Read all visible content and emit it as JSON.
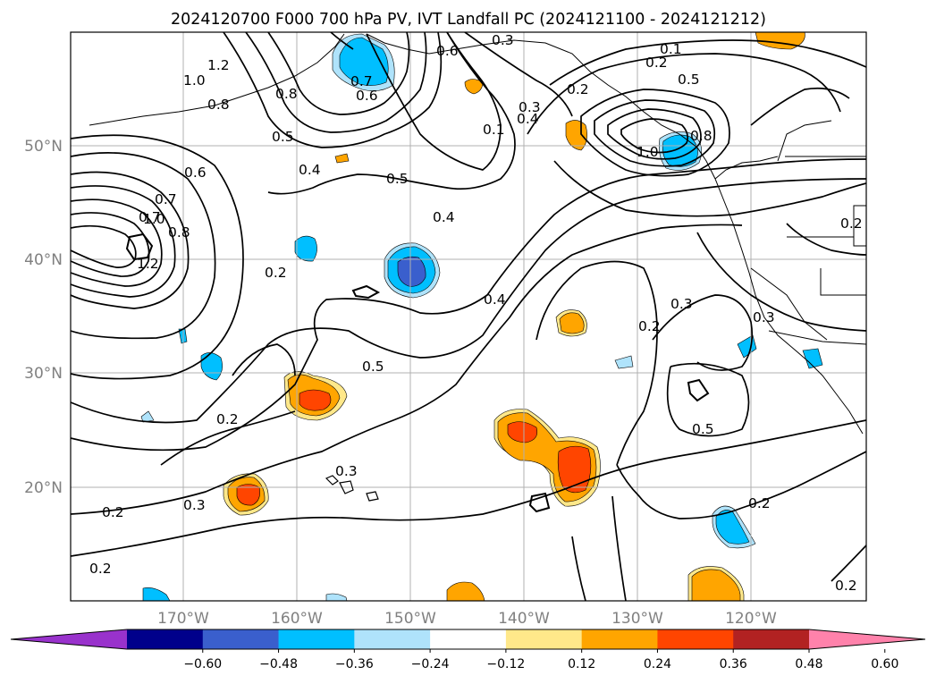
{
  "title": "2024120700 F000 700 hPa PV, IVT Landfall PC (2024121100 - 2024121212)",
  "lat_labels": [
    "50°N",
    "40°N",
    "30°N",
    "20°N"
  ],
  "lon_labels": [
    "170°W",
    "160°W",
    "150°W",
    "140°W",
    "130°W",
    "120°W"
  ],
  "contour_labels": [
    "1.2",
    "1.0",
    "0.8",
    "0.6",
    "0.5",
    "0.8",
    "0.7",
    "0.4",
    "0.2",
    "0.5",
    "0.4",
    "0.3",
    "0.2",
    "0.5",
    "0.4",
    "0.1",
    "0.3",
    "0.6",
    "0.7",
    "0.6",
    "0.2",
    "0.1",
    "0.7",
    "0.8",
    "1.0",
    "1.2",
    "0.2",
    "0.4",
    "0.5",
    "0.3",
    "0.2",
    "0.3",
    "0.2",
    "0.3",
    "0.2",
    "0.5",
    "0.2",
    "0.2",
    "0.3",
    "0.2",
    "1.0",
    "0.8"
  ],
  "colorbar": {
    "ticks": [
      "−0.60",
      "−0.48",
      "−0.36",
      "−0.24",
      "−0.12",
      "0.12",
      "0.24",
      "0.36",
      "0.48",
      "0.60"
    ],
    "colors": [
      "#9932cc",
      "#00008b",
      "#3a5fcd",
      "#00bfff",
      "#afe3fb",
      "#ffffff",
      "#ffe88a",
      "#ffa500",
      "#ff4500",
      "#b22222",
      "#ff82ab"
    ]
  },
  "colors": {
    "neg_light": "#afe3fb",
    "neg_mid": "#00bfff",
    "neg_dark": "#3a5fcd",
    "pos_light": "#ffe88a",
    "pos_mid": "#ffa500",
    "pos_dark": "#ff4500"
  }
}
